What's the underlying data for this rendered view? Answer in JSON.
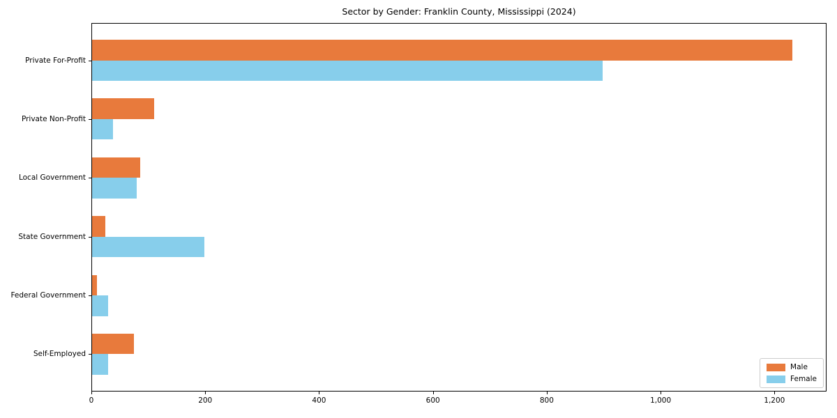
{
  "chart_data": {
    "type": "bar",
    "orientation": "horizontal",
    "title": "Sector by Gender: Franklin County, Mississippi (2024)",
    "categories": [
      "Private For-Profit",
      "Private Non-Profit",
      "Local Government",
      "State Government",
      "Federal Government",
      "Self-Employed"
    ],
    "series": [
      {
        "name": "Male",
        "color": "#E87A3C",
        "values": [
          1230,
          109,
          84,
          23,
          9,
          73
        ]
      },
      {
        "name": "Female",
        "color": "#87CEEB",
        "values": [
          897,
          37,
          78,
          197,
          28,
          28
        ]
      }
    ],
    "xlabel": "",
    "ylabel": "",
    "xlim": [
      0,
      1291.5
    ],
    "x_ticks": [
      0,
      200,
      400,
      600,
      800,
      1000,
      1200
    ],
    "x_tick_labels": [
      "0",
      "200",
      "400",
      "600",
      "800",
      "1,000",
      "1,200"
    ],
    "grid": false,
    "legend_position": "lower right",
    "bar_height_fraction": 0.35
  },
  "colors": {
    "male": "#E87A3C",
    "female": "#87CEEB",
    "axis": "#000000",
    "background": "#FFFFFF",
    "legend_border": "#CCCCCC"
  }
}
